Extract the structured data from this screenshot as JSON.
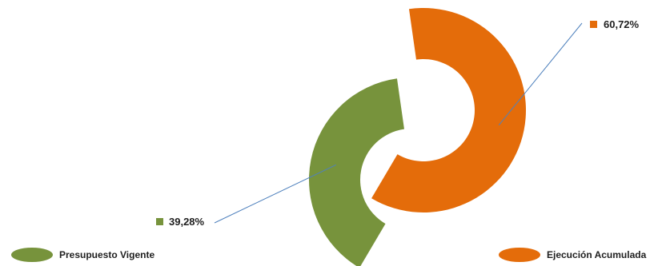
{
  "chart_data": {
    "type": "pie",
    "subtype": "donut-exploded",
    "series": [
      {
        "name": "Ejecución Acumulada",
        "value": 60.72,
        "label": "60,72%",
        "color": "#e46c0a"
      },
      {
        "name": "Presupuesto Vigente",
        "value": 39.28,
        "label": "39,28%",
        "color": "#77933c"
      }
    ],
    "legend": {
      "position": "bottom"
    },
    "leader_line_color": "#4f81bd"
  }
}
